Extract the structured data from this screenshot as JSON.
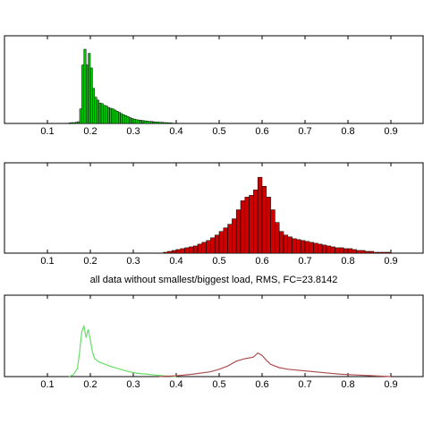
{
  "chart_data": [
    {
      "type": "histogram",
      "color": "#00cc00",
      "bins": [
        0.15,
        0.155,
        0.16,
        0.165,
        0.17,
        0.175,
        0.18,
        0.185,
        0.19,
        0.195,
        0.2,
        0.205,
        0.21,
        0.215,
        0.22,
        0.225,
        0.23,
        0.235,
        0.24,
        0.245,
        0.25,
        0.255,
        0.26,
        0.265,
        0.27,
        0.275,
        0.28,
        0.285,
        0.29,
        0.295,
        0.3,
        0.305,
        0.31,
        0.315,
        0.32,
        0.325,
        0.33,
        0.335,
        0.34,
        0.345,
        0.35,
        0.355,
        0.36,
        0.365,
        0.37,
        0.375,
        0.38,
        0.385,
        0.39,
        0.395,
        0.4
      ],
      "values": [
        2,
        3,
        3,
        4,
        6,
        50,
        200,
        254,
        200,
        240,
        190,
        120,
        90,
        80,
        70,
        68,
        62,
        60,
        55,
        52,
        50,
        46,
        42,
        38,
        34,
        30,
        27,
        24,
        20,
        17,
        15,
        13,
        12,
        11,
        10,
        9,
        8,
        7,
        7,
        6,
        5,
        5,
        4,
        4,
        3,
        3,
        2,
        2,
        1,
        1
      ],
      "xlim": [
        0,
        0.975
      ],
      "ylim": [
        0,
        300
      ],
      "xticks": [
        0.1,
        0.2,
        0.3,
        0.4,
        0.5,
        0.6,
        0.7,
        0.8,
        0.9
      ]
    },
    {
      "type": "histogram",
      "color": "#cc0000",
      "bins": [
        0.36,
        0.37,
        0.38,
        0.39,
        0.4,
        0.41,
        0.42,
        0.43,
        0.44,
        0.45,
        0.46,
        0.47,
        0.48,
        0.49,
        0.5,
        0.51,
        0.52,
        0.53,
        0.54,
        0.55,
        0.56,
        0.57,
        0.58,
        0.59,
        0.6,
        0.61,
        0.62,
        0.63,
        0.64,
        0.65,
        0.66,
        0.67,
        0.68,
        0.69,
        0.7,
        0.71,
        0.72,
        0.73,
        0.74,
        0.75,
        0.76,
        0.77,
        0.78,
        0.79,
        0.8,
        0.81,
        0.82,
        0.83,
        0.84,
        0.85,
        0.86,
        0.87,
        0.88,
        0.89,
        0.9
      ],
      "values": [
        0,
        1,
        2,
        3,
        4,
        5,
        6,
        7,
        8,
        10,
        12,
        14,
        17,
        20,
        24,
        28,
        32,
        38,
        48,
        58,
        62,
        64,
        70,
        84,
        74,
        62,
        48,
        34,
        24,
        20,
        18,
        16,
        15,
        14,
        13,
        12,
        11,
        10,
        9,
        8,
        7,
        6,
        6,
        5,
        5,
        4,
        3,
        3,
        2,
        2,
        1,
        1,
        1,
        1
      ],
      "xlim": [
        0,
        0.975
      ],
      "ylim": [
        0,
        100
      ],
      "xticks": [
        0.1,
        0.2,
        0.3,
        0.4,
        0.5,
        0.6,
        0.7,
        0.8,
        0.9
      ]
    },
    {
      "type": "line",
      "title": "all data without smallest/biggest load, RMS, FC=23.8142",
      "series": [
        {
          "color": "#66dd66",
          "x": [
            0.15,
            0.16,
            0.17,
            0.175,
            0.18,
            0.185,
            0.19,
            0.195,
            0.2,
            0.205,
            0.21,
            0.22,
            0.23,
            0.24,
            0.25,
            0.27,
            0.29,
            0.31,
            0.33,
            0.35,
            0.37,
            0.4
          ],
          "values": [
            0,
            2,
            10,
            30,
            55,
            62,
            48,
            58,
            45,
            30,
            22,
            18,
            16,
            14,
            12,
            9,
            6,
            4,
            3,
            2,
            1,
            0
          ]
        },
        {
          "color": "#b05050",
          "x": [
            0.36,
            0.4,
            0.44,
            0.48,
            0.5,
            0.52,
            0.54,
            0.56,
            0.58,
            0.59,
            0.6,
            0.61,
            0.62,
            0.64,
            0.66,
            0.7,
            0.74,
            0.78,
            0.82,
            0.86,
            0.9
          ],
          "values": [
            0,
            1,
            3,
            6,
            9,
            13,
            19,
            22,
            24,
            29,
            26,
            20,
            15,
            11,
            9,
            7,
            5,
            3,
            2,
            1,
            0
          ]
        }
      ],
      "xlim": [
        0,
        0.975
      ],
      "ylim": [
        0,
        100
      ],
      "xticks": [
        0.1,
        0.2,
        0.3,
        0.4,
        0.5,
        0.6,
        0.7,
        0.8,
        0.9
      ]
    }
  ]
}
